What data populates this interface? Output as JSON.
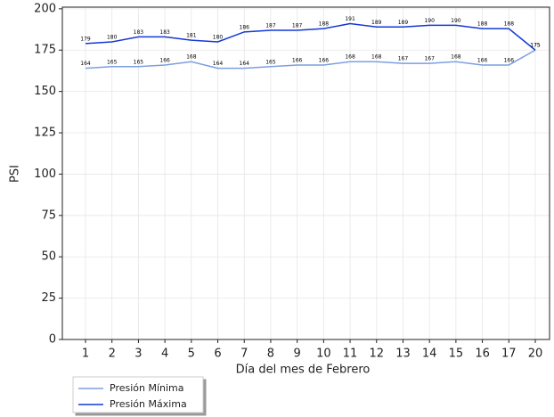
{
  "chart_data": {
    "type": "line",
    "x_label": "Día del mes de  Febrero",
    "y_label": "PSI",
    "categories": [
      "1",
      "2",
      "3",
      "4",
      "5",
      "6",
      "7",
      "8",
      "9",
      "10",
      "11",
      "12",
      "13",
      "14",
      "15",
      "16",
      "17",
      "20"
    ],
    "series": [
      {
        "name": "Presión Mínima",
        "color": "#7b9fe0",
        "values": [
          164,
          165,
          165,
          166,
          168,
          164,
          164,
          165,
          166,
          166,
          168,
          168,
          167,
          167,
          168,
          166,
          166,
          175
        ]
      },
      {
        "name": "Presión Máxima",
        "color": "#1538d4",
        "values": [
          179,
          180,
          183,
          183,
          181,
          180,
          186,
          187,
          187,
          188,
          191,
          189,
          189,
          190,
          190,
          188,
          188,
          175
        ]
      }
    ],
    "ylim": [
      0,
      201
    ],
    "yticks": [
      0,
      25,
      50,
      75,
      100,
      125,
      150,
      175,
      200
    ],
    "grid": true,
    "data_labels": true
  }
}
